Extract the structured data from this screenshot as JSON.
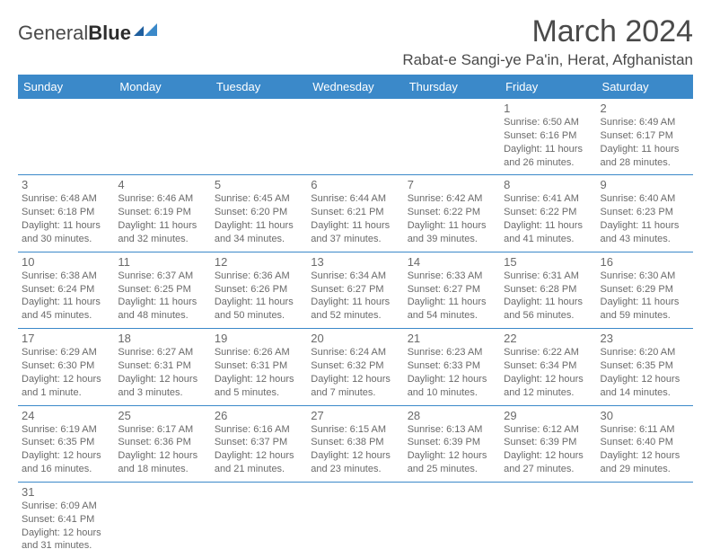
{
  "logo": {
    "text1": "General",
    "text2": "Blue"
  },
  "title": "March 2024",
  "location": "Rabat-e Sangi-ye Pa'in, Herat, Afghanistan",
  "colors": {
    "header_bg": "#3b89c9",
    "header_text": "#ffffff",
    "border": "#3b89c9",
    "text": "#6a6a6a",
    "title_text": "#4a4a4a"
  },
  "weekdays": [
    "Sunday",
    "Monday",
    "Tuesday",
    "Wednesday",
    "Thursday",
    "Friday",
    "Saturday"
  ],
  "weeks": [
    [
      null,
      null,
      null,
      null,
      null,
      {
        "n": "1",
        "sr": "6:50 AM",
        "ss": "6:16 PM",
        "dl": "11 hours and 26 minutes."
      },
      {
        "n": "2",
        "sr": "6:49 AM",
        "ss": "6:17 PM",
        "dl": "11 hours and 28 minutes."
      }
    ],
    [
      {
        "n": "3",
        "sr": "6:48 AM",
        "ss": "6:18 PM",
        "dl": "11 hours and 30 minutes."
      },
      {
        "n": "4",
        "sr": "6:46 AM",
        "ss": "6:19 PM",
        "dl": "11 hours and 32 minutes."
      },
      {
        "n": "5",
        "sr": "6:45 AM",
        "ss": "6:20 PM",
        "dl": "11 hours and 34 minutes."
      },
      {
        "n": "6",
        "sr": "6:44 AM",
        "ss": "6:21 PM",
        "dl": "11 hours and 37 minutes."
      },
      {
        "n": "7",
        "sr": "6:42 AM",
        "ss": "6:22 PM",
        "dl": "11 hours and 39 minutes."
      },
      {
        "n": "8",
        "sr": "6:41 AM",
        "ss": "6:22 PM",
        "dl": "11 hours and 41 minutes."
      },
      {
        "n": "9",
        "sr": "6:40 AM",
        "ss": "6:23 PM",
        "dl": "11 hours and 43 minutes."
      }
    ],
    [
      {
        "n": "10",
        "sr": "6:38 AM",
        "ss": "6:24 PM",
        "dl": "11 hours and 45 minutes."
      },
      {
        "n": "11",
        "sr": "6:37 AM",
        "ss": "6:25 PM",
        "dl": "11 hours and 48 minutes."
      },
      {
        "n": "12",
        "sr": "6:36 AM",
        "ss": "6:26 PM",
        "dl": "11 hours and 50 minutes."
      },
      {
        "n": "13",
        "sr": "6:34 AM",
        "ss": "6:27 PM",
        "dl": "11 hours and 52 minutes."
      },
      {
        "n": "14",
        "sr": "6:33 AM",
        "ss": "6:27 PM",
        "dl": "11 hours and 54 minutes."
      },
      {
        "n": "15",
        "sr": "6:31 AM",
        "ss": "6:28 PM",
        "dl": "11 hours and 56 minutes."
      },
      {
        "n": "16",
        "sr": "6:30 AM",
        "ss": "6:29 PM",
        "dl": "11 hours and 59 minutes."
      }
    ],
    [
      {
        "n": "17",
        "sr": "6:29 AM",
        "ss": "6:30 PM",
        "dl": "12 hours and 1 minute."
      },
      {
        "n": "18",
        "sr": "6:27 AM",
        "ss": "6:31 PM",
        "dl": "12 hours and 3 minutes."
      },
      {
        "n": "19",
        "sr": "6:26 AM",
        "ss": "6:31 PM",
        "dl": "12 hours and 5 minutes."
      },
      {
        "n": "20",
        "sr": "6:24 AM",
        "ss": "6:32 PM",
        "dl": "12 hours and 7 minutes."
      },
      {
        "n": "21",
        "sr": "6:23 AM",
        "ss": "6:33 PM",
        "dl": "12 hours and 10 minutes."
      },
      {
        "n": "22",
        "sr": "6:22 AM",
        "ss": "6:34 PM",
        "dl": "12 hours and 12 minutes."
      },
      {
        "n": "23",
        "sr": "6:20 AM",
        "ss": "6:35 PM",
        "dl": "12 hours and 14 minutes."
      }
    ],
    [
      {
        "n": "24",
        "sr": "6:19 AM",
        "ss": "6:35 PM",
        "dl": "12 hours and 16 minutes."
      },
      {
        "n": "25",
        "sr": "6:17 AM",
        "ss": "6:36 PM",
        "dl": "12 hours and 18 minutes."
      },
      {
        "n": "26",
        "sr": "6:16 AM",
        "ss": "6:37 PM",
        "dl": "12 hours and 21 minutes."
      },
      {
        "n": "27",
        "sr": "6:15 AM",
        "ss": "6:38 PM",
        "dl": "12 hours and 23 minutes."
      },
      {
        "n": "28",
        "sr": "6:13 AM",
        "ss": "6:39 PM",
        "dl": "12 hours and 25 minutes."
      },
      {
        "n": "29",
        "sr": "6:12 AM",
        "ss": "6:39 PM",
        "dl": "12 hours and 27 minutes."
      },
      {
        "n": "30",
        "sr": "6:11 AM",
        "ss": "6:40 PM",
        "dl": "12 hours and 29 minutes."
      }
    ],
    [
      {
        "n": "31",
        "sr": "6:09 AM",
        "ss": "6:41 PM",
        "dl": "12 hours and 31 minutes."
      },
      null,
      null,
      null,
      null,
      null,
      null
    ]
  ],
  "labels": {
    "sunrise": "Sunrise:",
    "sunset": "Sunset:",
    "daylight": "Daylight:"
  }
}
